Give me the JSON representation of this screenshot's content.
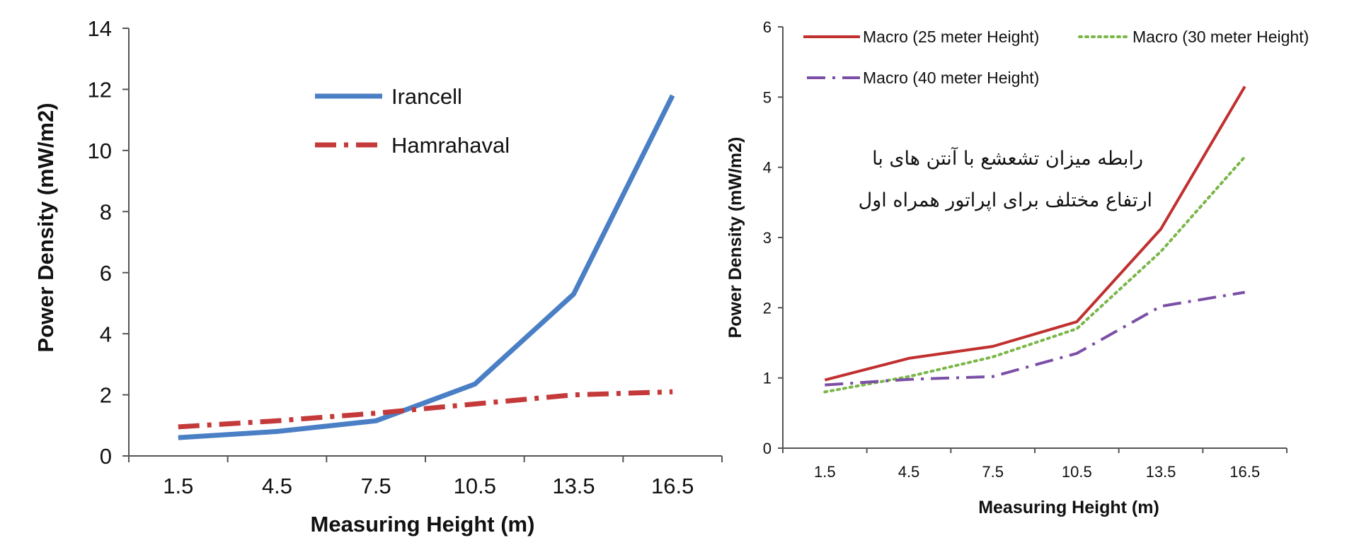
{
  "chart_data": [
    {
      "type": "line",
      "title": "",
      "xlabel": "Measuring Height (m)",
      "ylabel": "Power Density (mW/m2)",
      "ylim": [
        0,
        14
      ],
      "yticks": [
        0,
        2,
        4,
        6,
        8,
        10,
        12,
        14
      ],
      "categories": [
        "1.5",
        "4.5",
        "7.5",
        "10.5",
        "13.5",
        "16.5"
      ],
      "legend_position": "top-center",
      "series": [
        {
          "name": "Irancell",
          "values": [
            0.6,
            0.8,
            1.15,
            2.35,
            5.3,
            11.8
          ],
          "color": "#4a7fc6",
          "style": "solid"
        },
        {
          "name": "Hamrahaval",
          "values": [
            0.95,
            1.15,
            1.4,
            1.7,
            2.0,
            2.1
          ],
          "color": "#c43a3a",
          "style": "dashdot"
        }
      ]
    },
    {
      "type": "line",
      "title": "",
      "xlabel": "Measuring Height (m)",
      "ylabel": "Power Density (mW/m2)",
      "ylim": [
        0,
        6
      ],
      "yticks": [
        0,
        1,
        2,
        3,
        4,
        5,
        6
      ],
      "categories": [
        "1.5",
        "4.5",
        "7.5",
        "10.5",
        "13.5",
        "16.5"
      ],
      "legend_position": "top",
      "annotation": [
        "رابطه میزان تشعشع با آنتن های با",
        "ارتفاع مختلف  برای اپراتور همراه اول"
      ],
      "series": [
        {
          "name": "Macro (25 meter Height)",
          "values": [
            0.97,
            1.28,
            1.45,
            1.8,
            3.12,
            5.15
          ],
          "color": "#c0302e",
          "style": "solid"
        },
        {
          "name": "Macro (30 meter Height)",
          "values": [
            0.8,
            1.02,
            1.3,
            1.7,
            2.8,
            4.15
          ],
          "color": "#7ab648",
          "style": "dotted"
        },
        {
          "name": "Macro (40 meter Height)",
          "values": [
            0.9,
            0.98,
            1.02,
            1.35,
            2.02,
            2.22
          ],
          "color": "#7b4fa6",
          "style": "longdashdot"
        }
      ]
    }
  ]
}
